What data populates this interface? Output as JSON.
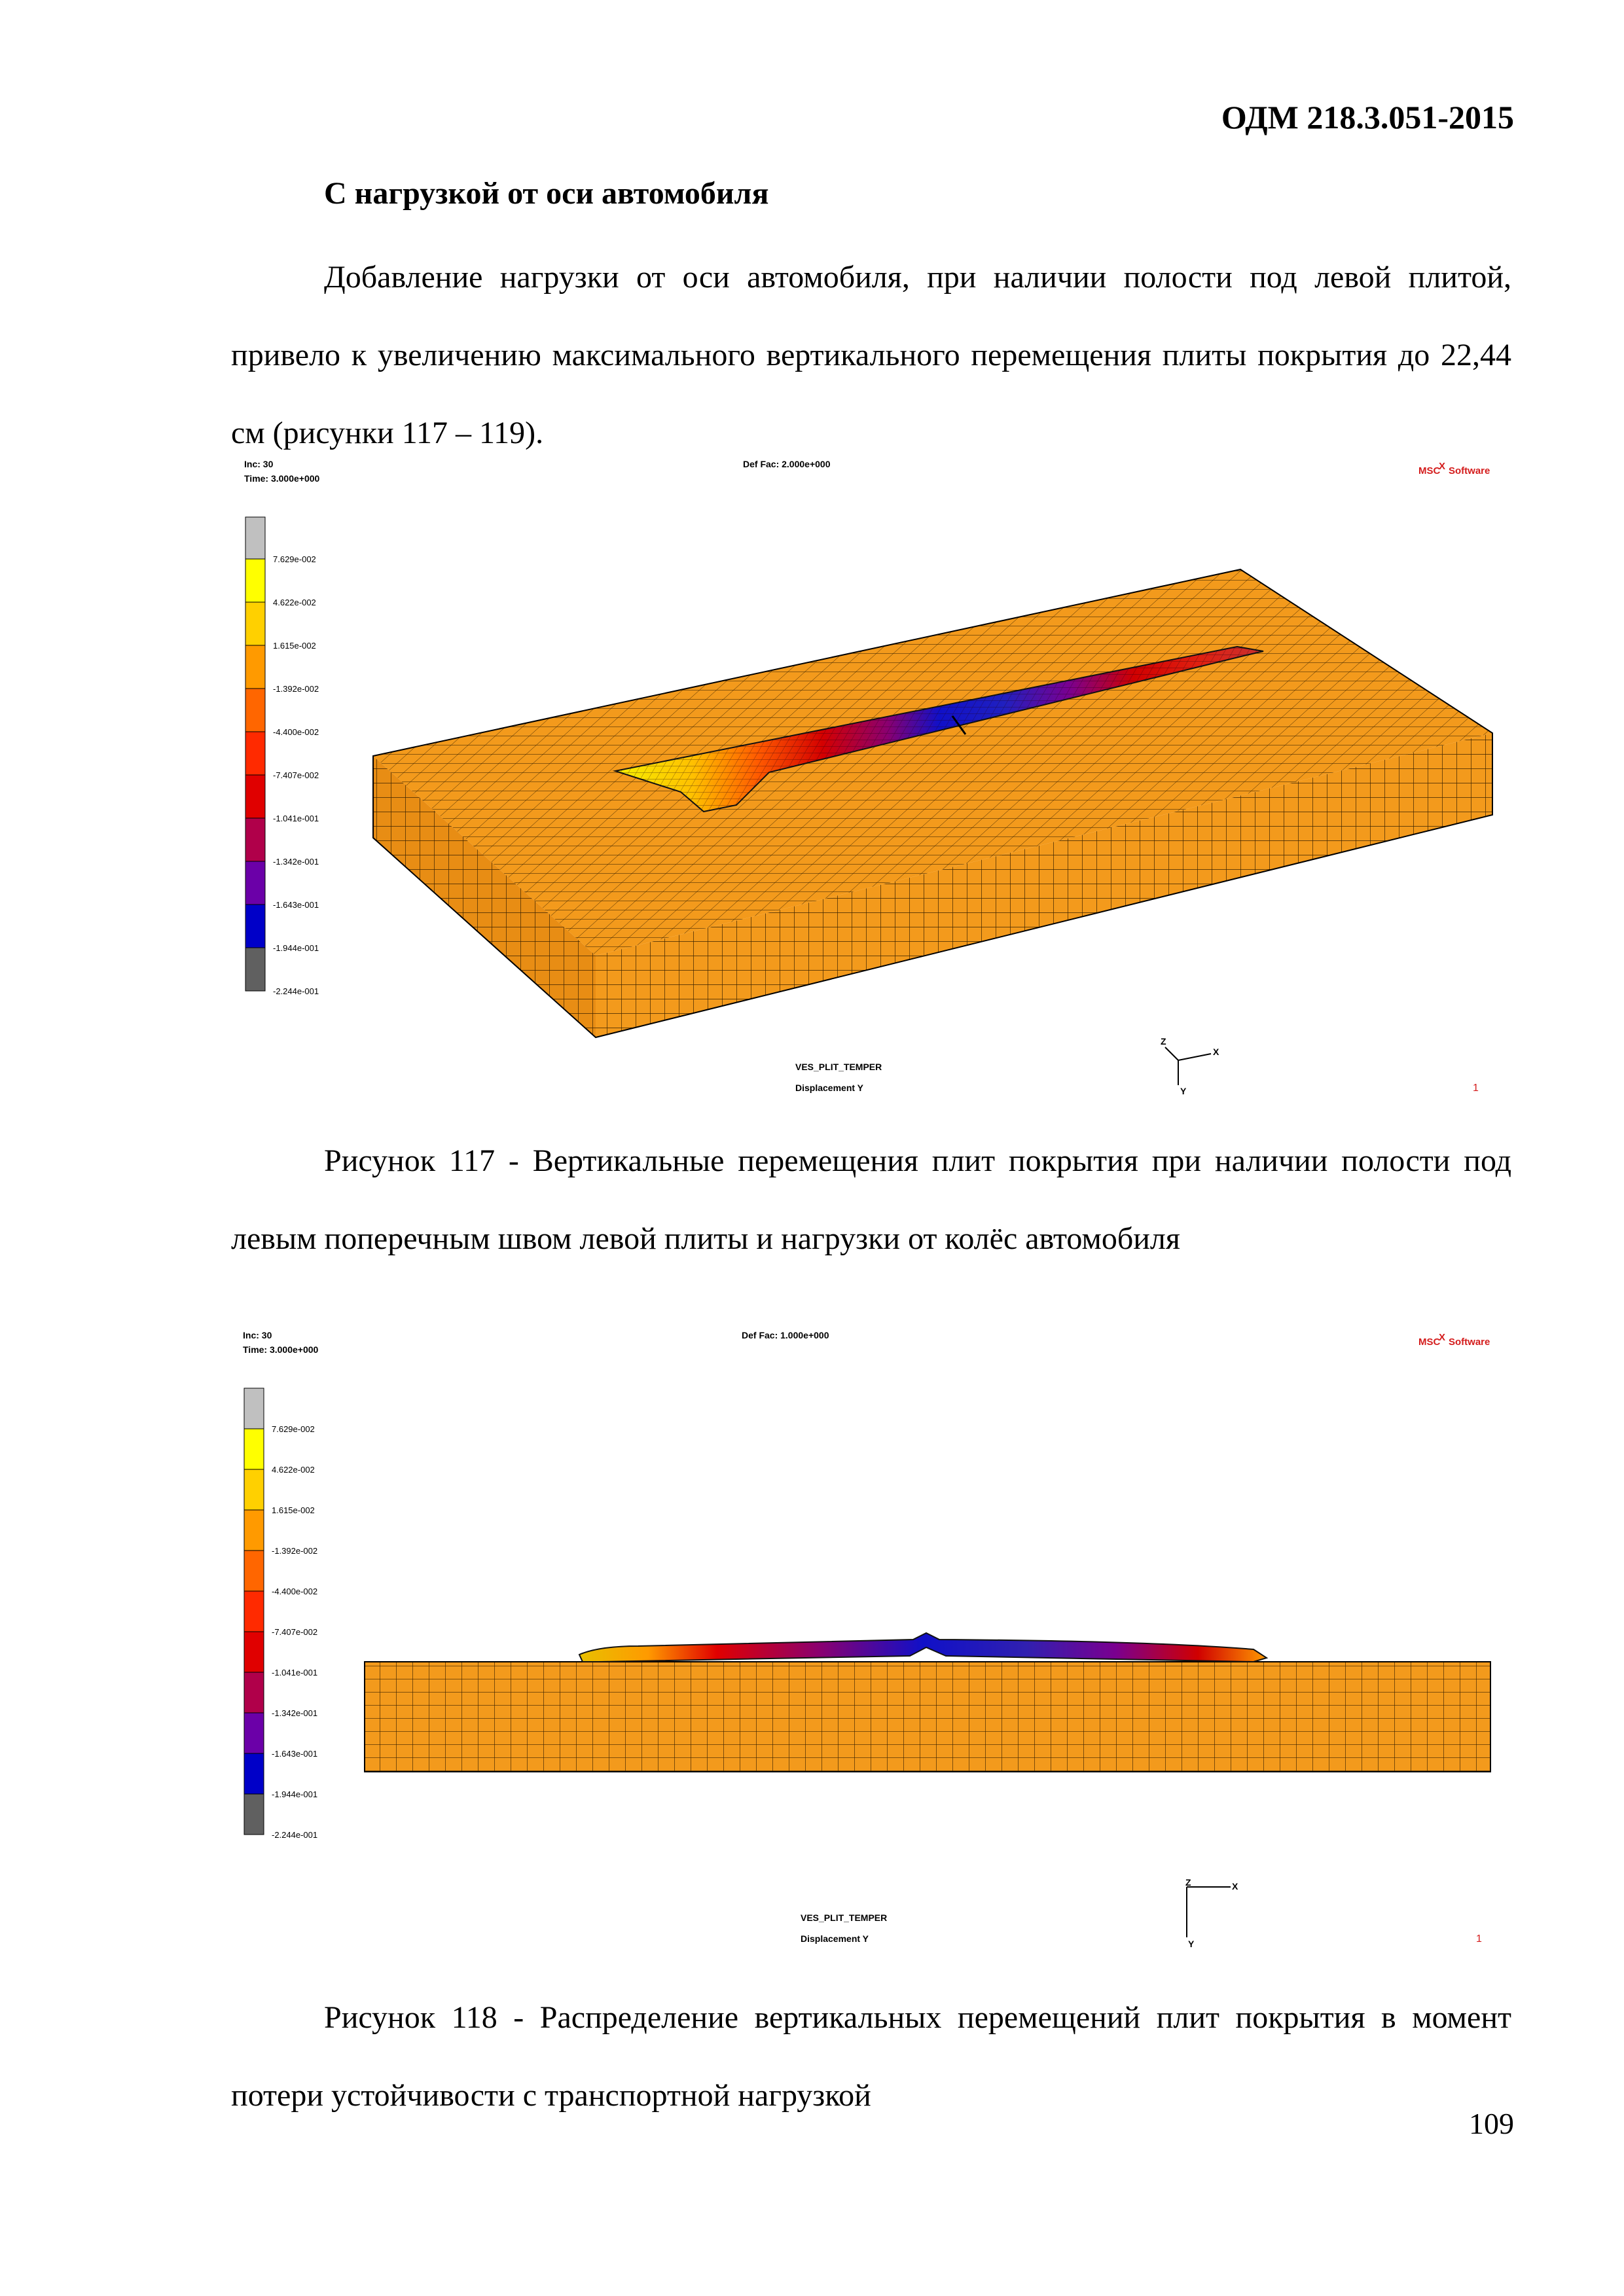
{
  "header": {
    "doc_code": "ОДМ 218.3.051-2015"
  },
  "section_heading": "С нагрузкой от оси автомобиля",
  "intro_paragraph": "Добавление нагрузки от оси автомобиля, при наличии полости под левой плитой, привело к увеличению максимального вертикального перемещения плиты покрытия до 22,44 см (рисунки 117 – 119).",
  "figures": [
    {
      "inc_label": "Inc:  30",
      "time_label": "Time:  3.000e+000",
      "def_fac_label": "Def Fac:  2.000e+000",
      "logo_text": "MSC",
      "logo_sub": "Software",
      "legend": [
        "7.629e-002",
        "4.622e-002",
        "1.615e-002",
        "-1.392e-002",
        "-4.400e-002",
        "-7.407e-002",
        "-1.041e-001",
        "-1.342e-001",
        "-1.643e-001",
        "-1.944e-001",
        "-2.244e-001"
      ],
      "model_name": "VES_PLIT_TEMPER",
      "quantity": "Displacement Y",
      "frame_number": "1",
      "axis_labels": {
        "y": "Y",
        "z": "Z",
        "x": "X"
      },
      "caption": "Рисунок 117 - Вертикальные перемещения плит покрытия при наличии полости под левым поперечным швом левой плиты и нагрузки от колёс автомобиля"
    },
    {
      "inc_label": "Inc:  30",
      "time_label": "Time:  3.000e+000",
      "def_fac_label": "Def Fac:  1.000e+000",
      "logo_text": "MSC",
      "logo_sub": "Software",
      "legend": [
        "7.629e-002",
        "4.622e-002",
        "1.615e-002",
        "-1.392e-002",
        "-4.400e-002",
        "-7.407e-002",
        "-1.041e-001",
        "-1.342e-001",
        "-1.643e-001",
        "-1.944e-001",
        "-2.244e-001"
      ],
      "model_name": "VES_PLIT_TEMPER",
      "quantity": "Displacement Y",
      "frame_number": "1",
      "axis_labels": {
        "y": "Y",
        "z": "Z",
        "x": "X"
      },
      "caption": "Рисунок 118 - Распределение вертикальных перемещений плит покрытия в момент потери устойчивости с транспортной нагрузкой"
    }
  ],
  "colors": {
    "legend_scale": [
      "#c0c0c0",
      "#ffff00",
      "#ffd000",
      "#ff9a00",
      "#ff6600",
      "#ff2a00",
      "#e00000",
      "#b0004a",
      "#6b00a8",
      "#2a2ad8",
      "#0000c8",
      "#606060"
    ],
    "soil": "#f39a1c",
    "mesh_line": "#3a2200"
  },
  "page_number": "109"
}
